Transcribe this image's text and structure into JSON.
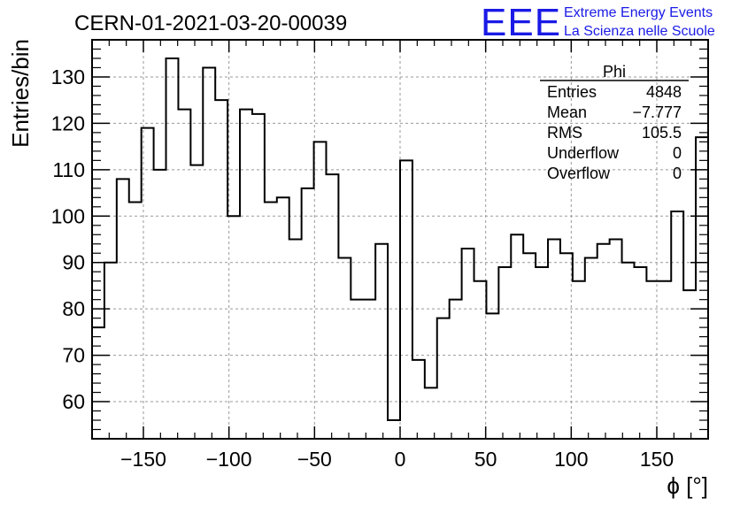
{
  "header": {
    "run_title": "CERN-01-2021-03-20-00039",
    "logo_text": "EEE",
    "org_line1": "Extreme Energy Events",
    "org_line2": "La Scienza nelle Scuole",
    "logo_color": "#1a1ae6"
  },
  "stats": {
    "name": "Phi",
    "rows": [
      {
        "label": "Entries",
        "value": "4848"
      },
      {
        "label": "Mean",
        "value": "−7.777"
      },
      {
        "label": "RMS",
        "value": "105.5"
      },
      {
        "label": "Underflow",
        "value": "0"
      },
      {
        "label": "Overflow",
        "value": "0"
      }
    ]
  },
  "chart_data": {
    "type": "bar",
    "style": "step-histogram",
    "xlabel": "ϕ [°]",
    "ylabel": "Entries/bin",
    "xlim": [
      -180,
      180
    ],
    "ylim": [
      52,
      138
    ],
    "grid": true,
    "bin_width": 7.2,
    "x_ticks": [
      -150,
      -100,
      -50,
      0,
      50,
      100,
      150
    ],
    "x_tick_labels": [
      "−150",
      "−100",
      "−50",
      "0",
      "50",
      "100",
      "150"
    ],
    "y_ticks": [
      60,
      70,
      80,
      90,
      100,
      110,
      120,
      130
    ],
    "y_tick_labels": [
      "60",
      "70",
      "80",
      "90",
      "100",
      "110",
      "120",
      "130"
    ],
    "values": [
      76,
      90,
      108,
      103,
      119,
      110,
      134,
      123,
      111,
      132,
      125,
      100,
      123,
      122,
      103,
      104,
      95,
      106,
      116,
      109,
      91,
      82,
      82,
      94,
      56,
      112,
      69,
      63,
      78,
      82,
      93,
      86,
      79,
      89,
      96,
      92,
      89,
      95,
      92,
      86,
      91,
      94,
      95,
      90,
      89,
      86,
      86,
      101,
      84,
      117
    ]
  }
}
